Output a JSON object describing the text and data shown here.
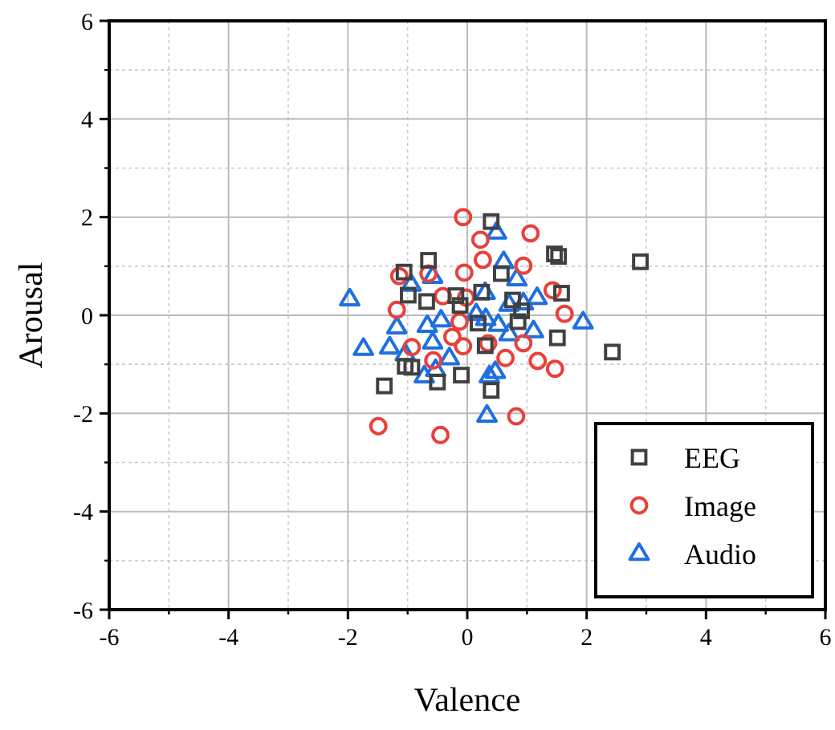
{
  "chart_data": {
    "type": "scatter",
    "xlabel": "Valence",
    "ylabel": "Arousal",
    "xlim": [
      -6,
      6
    ],
    "ylim": [
      -6,
      6
    ],
    "xticks": [
      -6,
      -4,
      -2,
      0,
      2,
      4,
      6
    ],
    "yticks": [
      -6,
      -4,
      -2,
      0,
      2,
      4,
      6
    ],
    "grid": true,
    "legend": "bottom right",
    "series": [
      {
        "name": "EEG",
        "color": "#404040",
        "marker": "square",
        "x": [
          0.4,
          1.46,
          1.53,
          2.9,
          -0.65,
          -1.06,
          -0.99,
          -0.68,
          -0.19,
          -0.12,
          0.57,
          0.24,
          0.76,
          1.58,
          0.91,
          0.85,
          0.18,
          1.51,
          2.43,
          0.3,
          -1.04,
          -0.93,
          -0.5,
          -0.1,
          -1.39,
          0.4
        ],
        "values": [
          1.91,
          1.25,
          1.2,
          1.09,
          1.12,
          0.88,
          0.41,
          0.28,
          0.4,
          0.2,
          0.85,
          0.47,
          0.31,
          0.45,
          0.09,
          -0.13,
          -0.16,
          -0.46,
          -0.75,
          -0.62,
          -1.04,
          -1.06,
          -1.36,
          -1.22,
          -1.44,
          -1.53
        ]
      },
      {
        "name": "Image",
        "color": "#e8413c",
        "marker": "circle",
        "x": [
          -0.07,
          0.22,
          1.06,
          0.26,
          0.94,
          -0.05,
          -1.14,
          -0.65,
          -0.41,
          -0.02,
          1.43,
          -1.18,
          1.63,
          -0.13,
          -0.25,
          -0.07,
          0.35,
          -0.93,
          0.94,
          0.64,
          1.18,
          1.47,
          -0.57,
          -1.49,
          -0.45,
          0.82
        ],
        "values": [
          2.0,
          1.54,
          1.67,
          1.13,
          1.01,
          0.87,
          0.8,
          0.85,
          0.39,
          0.36,
          0.51,
          0.11,
          0.03,
          -0.13,
          -0.44,
          -0.63,
          -0.57,
          -0.65,
          -0.57,
          -0.87,
          -0.93,
          -1.09,
          -0.92,
          -2.26,
          -2.44,
          -2.06
        ]
      },
      {
        "name": "Audio",
        "color": "#1f6fe0",
        "marker": "triangle",
        "x": [
          -1.97,
          -1.74,
          -0.94,
          -0.58,
          -1.18,
          -1.3,
          -1.04,
          -0.67,
          -0.58,
          -0.44,
          -0.3,
          -0.53,
          -0.72,
          0.49,
          0.61,
          0.3,
          0.83,
          0.15,
          0.31,
          0.7,
          0.94,
          1.17,
          0.52,
          0.7,
          1.11,
          1.94,
          0.47,
          0.37,
          0.33
        ],
        "values": [
          0.33,
          -0.68,
          0.63,
          0.79,
          -0.24,
          -0.65,
          -0.79,
          -0.21,
          -0.55,
          -0.1,
          -0.87,
          -1.11,
          -1.24,
          1.69,
          1.09,
          0.46,
          0.74,
          0.03,
          -0.07,
          0.22,
          0.25,
          0.36,
          -0.19,
          -0.38,
          -0.32,
          -0.14,
          -1.15,
          -1.24,
          -2.04
        ]
      }
    ]
  }
}
